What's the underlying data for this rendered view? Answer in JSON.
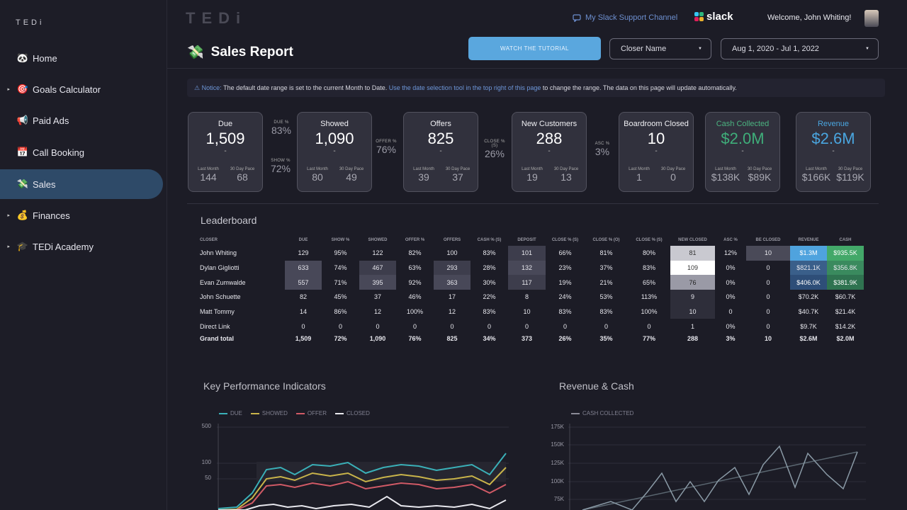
{
  "app": {
    "brand": "TEDi",
    "brand_big": "TEDi"
  },
  "sidebar": {
    "items": [
      {
        "label": "Home",
        "icon": "🐼",
        "caret": ""
      },
      {
        "label": "Goals Calculator",
        "icon": "🎯",
        "caret": "▸"
      },
      {
        "label": "Paid Ads",
        "icon": "📢",
        "caret": ""
      },
      {
        "label": "Call Booking",
        "icon": "📅",
        "caret": ""
      },
      {
        "label": "Sales",
        "icon": "💸",
        "caret": ""
      },
      {
        "label": "Finances",
        "icon": "💰",
        "caret": "▸"
      },
      {
        "label": "TEDi Academy",
        "icon": "🎓",
        "caret": "▸"
      }
    ]
  },
  "header": {
    "slack_link": "My Slack Support Channel",
    "slack_label": "slack",
    "welcome": "Welcome, John Whiting!"
  },
  "page": {
    "title": "Sales Report",
    "title_icon": "💸",
    "tutorial_button": "WATCH THE TUTORIAL",
    "closer_filter": "Closer Name",
    "date_filter": "Aug 1, 2020 - Jul 1, 2022"
  },
  "notice": {
    "prefix": "⚠ Notice:",
    "text1": "The default date range is set to the current Month to Date.",
    "link": "Use the date selection tool in the top right of this page",
    "text2": "to change the range. The data on this page will update automatically."
  },
  "kpis": [
    {
      "title": "Due",
      "value": "1,509",
      "delta": "-",
      "last_month": "144",
      "pace": "68",
      "color": "#ffffff",
      "title_color": "#f0f0f4"
    },
    {
      "title": "Showed",
      "value": "1,090",
      "delta": "-",
      "last_month": "80",
      "pace": "49",
      "color": "#ffffff",
      "title_color": "#f0f0f4"
    },
    {
      "title": "Offers",
      "value": "825",
      "delta": "-",
      "last_month": "39",
      "pace": "37",
      "color": "#ffffff",
      "title_color": "#f0f0f4"
    },
    {
      "title": "New Customers",
      "value": "288",
      "delta": "-",
      "last_month": "19",
      "pace": "13",
      "color": "#ffffff",
      "title_color": "#f0f0f4"
    },
    {
      "title": "Boardroom Closed",
      "value": "10",
      "delta": "-",
      "last_month": "1",
      "pace": "0",
      "color": "#ffffff",
      "title_color": "#f0f0f4"
    },
    {
      "title": "Cash Collected",
      "value": "$2.0M",
      "delta": "-",
      "last_month": "$138K",
      "pace": "$89K",
      "color": "#3fae7a",
      "title_color": "#4bb380"
    },
    {
      "title": "Revenue",
      "value": "$2.6M",
      "delta": "-",
      "last_month": "$166K",
      "pace": "$119K",
      "color": "#4aa6e0",
      "title_color": "#4aa6e0"
    }
  ],
  "kpi_sublabels": {
    "last_month": "Last Month",
    "pace": "30 Day Pace"
  },
  "ratios": [
    {
      "label": "DUE %",
      "value": "83%"
    },
    {
      "label": "SHOW %",
      "value": "72%"
    },
    {
      "label": "OFFER %",
      "value": "76%"
    },
    {
      "label": "CLOSE % (S)",
      "value": "26%"
    },
    {
      "label": "ASC %",
      "value": "3%"
    }
  ],
  "leaderboard": {
    "title": "Leaderboard",
    "columns": [
      "CLOSER",
      "DUE",
      "SHOW %",
      "SHOWED",
      "OFFER %",
      "OFFERS",
      "CASH % (S)",
      "DEPOSIT",
      "CLOSE % (S)",
      "CLOSE % (O)",
      "CLOSE % (S)",
      "NEW CLOSED",
      "ASC %",
      "BE CLOSED",
      "REVENUE",
      "CASH"
    ],
    "rows": [
      [
        "John Whiting",
        "129",
        "95%",
        "122",
        "82%",
        "100",
        "83%",
        "101",
        "66%",
        "81%",
        "80%",
        "81",
        "12%",
        "10",
        "$1.3M",
        "$935.5K"
      ],
      [
        "Dylan Gigliotti",
        "633",
        "74%",
        "467",
        "63%",
        "293",
        "28%",
        "132",
        "23%",
        "37%",
        "83%",
        "109",
        "0%",
        "0",
        "$821.1K",
        "$356.8K"
      ],
      [
        "Evan Zumwalde",
        "557",
        "71%",
        "395",
        "92%",
        "363",
        "30%",
        "117",
        "19%",
        "21%",
        "65%",
        "76",
        "0%",
        "0",
        "$406.0K",
        "$381.9K"
      ],
      [
        "John Schuette",
        "82",
        "45%",
        "37",
        "46%",
        "17",
        "22%",
        "8",
        "24%",
        "53%",
        "113%",
        "9",
        "0%",
        "0",
        "$70.2K",
        "$60.7K"
      ],
      [
        "Matt Tommy",
        "14",
        "86%",
        "12",
        "100%",
        "12",
        "83%",
        "10",
        "83%",
        "83%",
        "100%",
        "10",
        "0",
        "0",
        "$40.7K",
        "$21.4K"
      ],
      [
        "Direct Link",
        "0",
        "0",
        "0",
        "0",
        "0",
        "0",
        "0",
        "0",
        "0",
        "0",
        "1",
        "0%",
        "0",
        "$9.7K",
        "$14.2K"
      ]
    ],
    "total": [
      "Grand total",
      "1,509",
      "72%",
      "1,090",
      "76%",
      "825",
      "34%",
      "373",
      "26%",
      "35%",
      "77%",
      "288",
      "3%",
      "10",
      "$2.6M",
      "$2.0M"
    ]
  },
  "kpi_chart": {
    "title": "Key Performance Indicators",
    "legend": [
      {
        "name": "DUE",
        "color": "#3ab0b8"
      },
      {
        "name": "SHOWED",
        "color": "#c9b44a"
      },
      {
        "name": "OFFER",
        "color": "#d05a66"
      },
      {
        "name": "CLOSED",
        "color": "#e8e8ee"
      }
    ],
    "yticks": [
      "500",
      "100",
      "50"
    ]
  },
  "rev_chart": {
    "title": "Revenue & Cash",
    "legend": [
      {
        "name": "CASH COLLECTED",
        "color": "#8a8a96"
      }
    ],
    "yticks": [
      "175K",
      "150K",
      "125K",
      "100K",
      "75K"
    ]
  }
}
